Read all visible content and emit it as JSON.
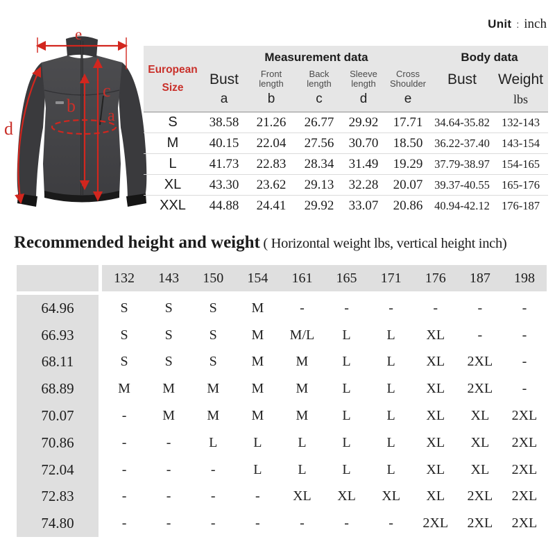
{
  "unit": {
    "label": "Unit",
    "separator": ":",
    "value": "inch"
  },
  "jacket": {
    "labels": {
      "a": "a",
      "b": "b",
      "c": "c",
      "d": "d",
      "e": "e"
    }
  },
  "size_table": {
    "measurement_header": "Measurement data",
    "body_header": "Body data",
    "columns": [
      {
        "title": "European",
        "line2": "Size"
      },
      {
        "title": "Bust",
        "letter": "a"
      },
      {
        "title": "Front",
        "line2": "length",
        "letter": "b"
      },
      {
        "title": "Back",
        "line2": "length",
        "letter": "c"
      },
      {
        "title": "Sleeve",
        "line2": "length",
        "letter": "d"
      },
      {
        "title": "Cross",
        "line2": "Shoulder",
        "letter": "e"
      },
      {
        "title": "Bust",
        "letter": ""
      },
      {
        "title": "Weight",
        "letter": "lbs"
      }
    ],
    "rows": [
      {
        "size": "S",
        "bust": "38.58",
        "front_length": "21.26",
        "back_length": "26.77",
        "sleeve_length": "29.92",
        "cross_shoulder": "17.71",
        "body_bust": "34.64-35.82",
        "weight": "132-143"
      },
      {
        "size": "M",
        "bust": "40.15",
        "front_length": "22.04",
        "back_length": "27.56",
        "sleeve_length": "30.70",
        "cross_shoulder": "18.50",
        "body_bust": "36.22-37.40",
        "weight": "143-154"
      },
      {
        "size": "L",
        "bust": "41.73",
        "front_length": "22.83",
        "back_length": "28.34",
        "sleeve_length": "31.49",
        "cross_shoulder": "19.29",
        "body_bust": "37.79-38.97",
        "weight": "154-165"
      },
      {
        "size": "XL",
        "bust": "43.30",
        "front_length": "23.62",
        "back_length": "29.13",
        "sleeve_length": "32.28",
        "cross_shoulder": "20.07",
        "body_bust": "39.37-40.55",
        "weight": "165-176"
      },
      {
        "size": "XXL",
        "bust": "44.88",
        "front_length": "24.41",
        "back_length": "29.92",
        "sleeve_length": "33.07",
        "cross_shoulder": "20.86",
        "body_bust": "40.94-42.12",
        "weight": "176-187"
      }
    ]
  },
  "recommendation": {
    "title": "Recommended height and weight",
    "subtitle": "( Horizontal weight lbs, vertical height inch)",
    "weights": [
      "132",
      "143",
      "150",
      "154",
      "161",
      "165",
      "171",
      "176",
      "187",
      "198"
    ],
    "rows": [
      {
        "height": "64.96",
        "cells": [
          "S",
          "S",
          "S",
          "M",
          "-",
          "-",
          "-",
          "-",
          "-",
          "-"
        ]
      },
      {
        "height": "66.93",
        "cells": [
          "S",
          "S",
          "S",
          "M",
          "M/L",
          "L",
          "L",
          "XL",
          "-",
          "-"
        ]
      },
      {
        "height": "68.11",
        "cells": [
          "S",
          "S",
          "S",
          "M",
          "M",
          "L",
          "L",
          "XL",
          "2XL",
          "-"
        ]
      },
      {
        "height": "68.89",
        "cells": [
          "M",
          "M",
          "M",
          "M",
          "M",
          "L",
          "L",
          "XL",
          "2XL",
          "-"
        ]
      },
      {
        "height": "70.07",
        "cells": [
          "-",
          "M",
          "M",
          "M",
          "M",
          "L",
          "L",
          "XL",
          "XL",
          "2XL"
        ]
      },
      {
        "height": "70.86",
        "cells": [
          "-",
          "-",
          "L",
          "L",
          "L",
          "L",
          "L",
          "XL",
          "XL",
          "2XL"
        ]
      },
      {
        "height": "72.04",
        "cells": [
          "-",
          "-",
          "-",
          "L",
          "L",
          "L",
          "L",
          "XL",
          "XL",
          "2XL"
        ]
      },
      {
        "height": "72.83",
        "cells": [
          "-",
          "-",
          "-",
          "-",
          "XL",
          "XL",
          "XL",
          "XL",
          "2XL",
          "2XL"
        ]
      },
      {
        "height": "74.80",
        "cells": [
          "-",
          "-",
          "-",
          "-",
          "-",
          "-",
          "-",
          "2XL",
          "2XL",
          "2XL"
        ]
      }
    ]
  },
  "colors": {
    "accent_red": "#c9302a",
    "header_gray": "#e6e6e6",
    "strip_gray": "#dfdfdf"
  }
}
